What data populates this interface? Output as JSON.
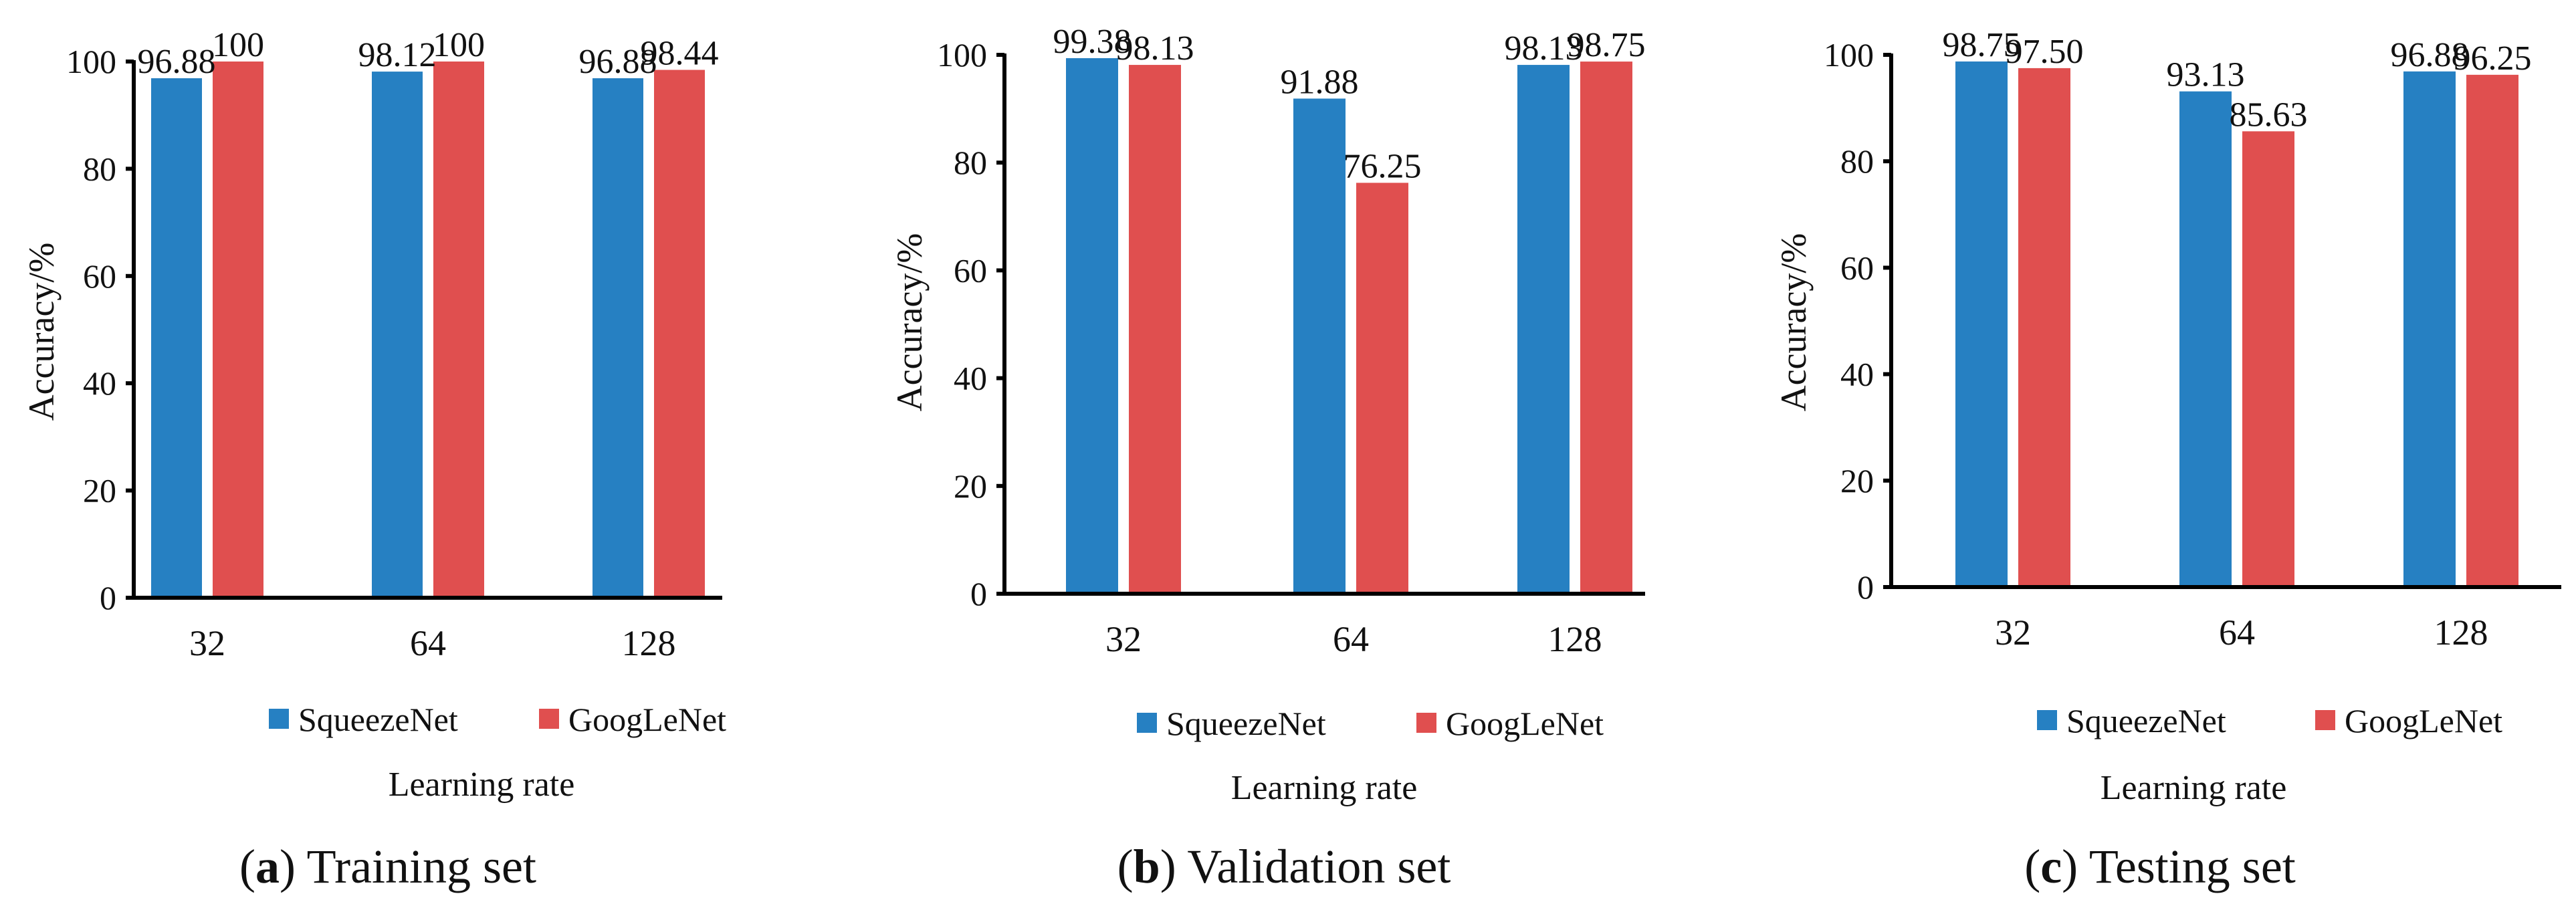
{
  "colors": {
    "squeezenet": "#2680C2",
    "googlenet": "#E04F4F",
    "axis": "#000000"
  },
  "chart_data": [
    {
      "type": "bar",
      "caption_letter": "a",
      "caption_text": "Training set",
      "caption_open": "(",
      "caption_close": ")",
      "categories": [
        "32",
        "64",
        "128"
      ],
      "series": [
        {
          "name": "SqueezeNet",
          "values": [
            96.88,
            98.12,
            96.88
          ],
          "labels": [
            "96.88",
            "98.12",
            "96.88"
          ]
        },
        {
          "name": "GoogLeNet",
          "values": [
            100,
            100,
            98.44
          ],
          "labels": [
            "100",
            "100",
            "98.44"
          ]
        }
      ],
      "ylabel": "Accuracy/%",
      "xlabel": "Learning rate",
      "ylim": [
        0,
        100
      ],
      "yticks": [
        "0",
        "20",
        "40",
        "60",
        "80",
        "100"
      ]
    },
    {
      "type": "bar",
      "caption_letter": "b",
      "caption_text": "Validation set",
      "caption_open": "(",
      "caption_close": ")",
      "categories": [
        "32",
        "64",
        "128"
      ],
      "series": [
        {
          "name": "SqueezeNet",
          "values": [
            99.38,
            91.88,
            98.13
          ],
          "labels": [
            "99.38",
            "91.88",
            "98.13"
          ]
        },
        {
          "name": "GoogLeNet",
          "values": [
            98.13,
            76.25,
            98.75
          ],
          "labels": [
            "98.13",
            "76.25",
            "98.75"
          ]
        }
      ],
      "ylabel": "Accuracy/%",
      "xlabel": "Learning rate",
      "ylim": [
        0,
        100
      ],
      "yticks": [
        "0",
        "20",
        "40",
        "60",
        "80",
        "100"
      ]
    },
    {
      "type": "bar",
      "caption_letter": "c",
      "caption_text": "Testing set",
      "caption_open": "(",
      "caption_close": ")",
      "categories": [
        "32",
        "64",
        "128"
      ],
      "series": [
        {
          "name": "SqueezeNet",
          "values": [
            98.75,
            93.13,
            96.88
          ],
          "labels": [
            "98.75",
            "93.13",
            "96.88"
          ]
        },
        {
          "name": "GoogLeNet",
          "values": [
            97.5,
            85.63,
            96.25
          ],
          "labels": [
            "97.50",
            "85.63",
            "96.25"
          ]
        }
      ],
      "ylabel": "Accuracy/%",
      "xlabel": "Learning rate",
      "ylim": [
        0,
        100
      ],
      "yticks": [
        "0",
        "20",
        "40",
        "60",
        "80",
        "100"
      ]
    }
  ]
}
